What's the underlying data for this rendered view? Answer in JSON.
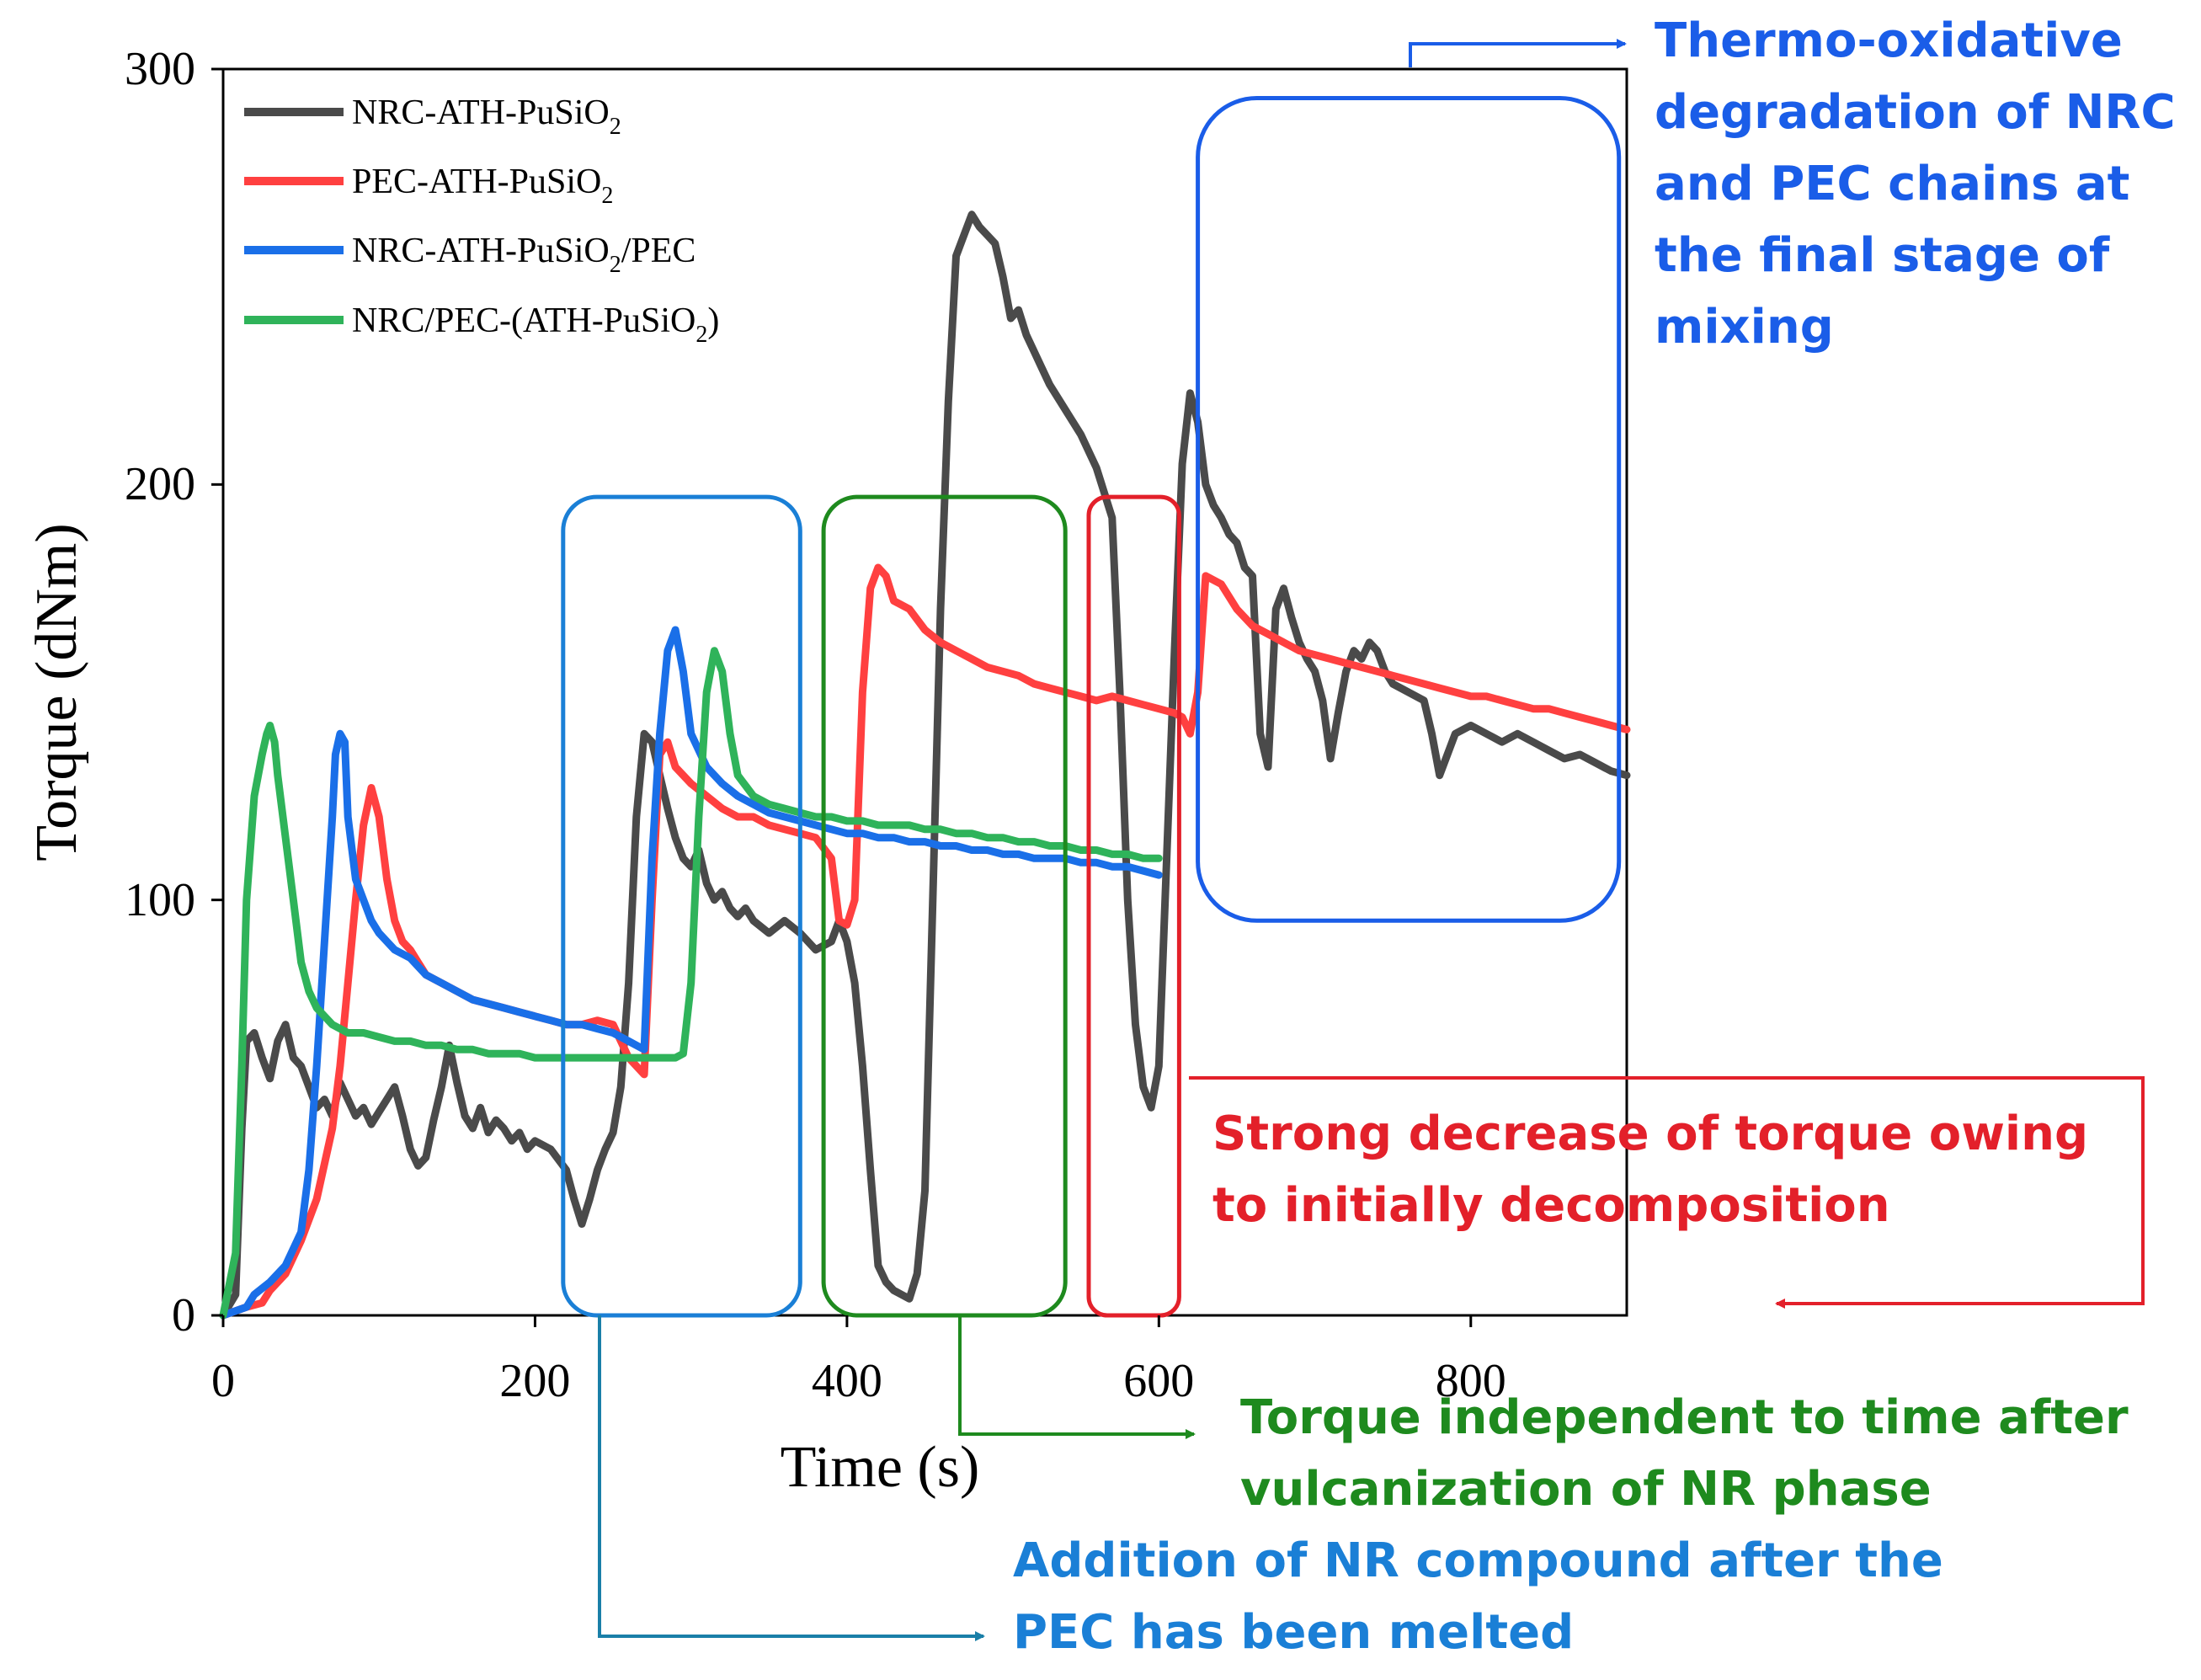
{
  "chart_data": {
    "type": "line",
    "xlabel": "Time (s)",
    "ylabel": "Torque (dNm)",
    "xlim": [
      0,
      900
    ],
    "ylim": [
      0,
      300
    ],
    "xticks": [
      "0",
      "200",
      "400",
      "600",
      "800"
    ],
    "yticks": [
      "0",
      "100",
      "200",
      "300"
    ],
    "grid": false,
    "legend_position": "top-left",
    "series": [
      {
        "name": "NRC-ATH-PuSiO2",
        "legend_main": "NRC-ATH-PuSiO",
        "legend_sub": "2",
        "legend_tail": "",
        "color": "#4a4a4a",
        "x": [
          0,
          8,
          12,
          15,
          20,
          25,
          30,
          35,
          40,
          45,
          50,
          55,
          60,
          65,
          70,
          75,
          80,
          85,
          90,
          95,
          100,
          105,
          110,
          115,
          120,
          125,
          130,
          135,
          140,
          145,
          150,
          155,
          160,
          165,
          170,
          175,
          180,
          185,
          190,
          195,
          200,
          210,
          220,
          225,
          230,
          235,
          240,
          245,
          250,
          255,
          260,
          265,
          270,
          275,
          280,
          285,
          290,
          295,
          300,
          305,
          310,
          315,
          320,
          325,
          330,
          335,
          340,
          350,
          360,
          370,
          380,
          390,
          395,
          400,
          405,
          410,
          415,
          420,
          425,
          430,
          435,
          440,
          445,
          450,
          455,
          460,
          465,
          470,
          475,
          480,
          485,
          490,
          495,
          500,
          505,
          510,
          515,
          520,
          525,
          530,
          540,
          550,
          560,
          565,
          570,
          575,
          580,
          585,
          590,
          595,
          600,
          605,
          610,
          615,
          620,
          625,
          630,
          635,
          640,
          645,
          650,
          655,
          660,
          665,
          670,
          675,
          680,
          685,
          690,
          695,
          700,
          705,
          710,
          715,
          720,
          725,
          730,
          735,
          740,
          745,
          750,
          760,
          770,
          775,
          780,
          785,
          790,
          800,
          810,
          820,
          830,
          840,
          850,
          860,
          870,
          880,
          890,
          900
        ],
        "y": [
          0,
          5,
          45,
          66,
          68,
          62,
          57,
          66,
          70,
          62,
          60,
          55,
          50,
          52,
          48,
          56,
          52,
          48,
          50,
          46,
          49,
          52,
          55,
          48,
          40,
          36,
          38,
          47,
          55,
          65,
          56,
          48,
          45,
          50,
          44,
          47,
          45,
          42,
          44,
          40,
          42,
          40,
          35,
          28,
          22,
          28,
          35,
          40,
          44,
          55,
          80,
          120,
          140,
          138,
          130,
          122,
          115,
          110,
          108,
          112,
          104,
          100,
          102,
          98,
          96,
          98,
          95,
          92,
          95,
          92,
          88,
          90,
          95,
          90,
          80,
          60,
          35,
          12,
          8,
          6,
          5,
          4,
          10,
          30,
          100,
          170,
          220,
          255,
          260,
          265,
          262,
          260,
          258,
          250,
          240,
          242,
          236,
          232,
          228,
          224,
          218,
          212,
          204,
          198,
          192,
          150,
          100,
          70,
          55,
          50,
          60,
          110,
          160,
          205,
          222,
          215,
          200,
          195,
          192,
          188,
          186,
          180,
          178,
          140,
          132,
          170,
          175,
          168,
          162,
          158,
          155,
          148,
          134,
          145,
          155,
          160,
          158,
          162,
          160,
          155,
          152,
          150,
          148,
          140,
          130,
          135,
          140,
          142,
          140,
          138,
          140,
          138,
          136,
          134,
          135,
          133,
          131,
          130
        ]
      },
      {
        "name": "PEC-ATH-PuSiO2",
        "legend_main": "PEC-ATH-PuSiO",
        "legend_sub": "2",
        "legend_tail": "",
        "color": "#ff4040",
        "x": [
          0,
          15,
          25,
          30,
          40,
          50,
          60,
          70,
          75,
          80,
          85,
          90,
          95,
          100,
          105,
          110,
          115,
          120,
          125,
          130,
          140,
          150,
          160,
          170,
          180,
          190,
          200,
          210,
          220,
          230,
          240,
          250,
          260,
          270,
          275,
          280,
          285,
          290,
          300,
          310,
          320,
          330,
          340,
          350,
          360,
          370,
          380,
          390,
          395,
          400,
          405,
          410,
          415,
          420,
          425,
          430,
          440,
          450,
          460,
          470,
          480,
          490,
          500,
          510,
          520,
          530,
          540,
          550,
          560,
          570,
          580,
          590,
          600,
          610,
          615,
          620,
          625,
          630,
          640,
          650,
          660,
          670,
          680,
          690,
          700,
          710,
          720,
          730,
          740,
          750,
          760,
          770,
          780,
          790,
          800,
          810,
          820,
          830,
          840,
          850,
          860,
          870,
          880,
          890,
          900
        ],
        "y": [
          0,
          2,
          3,
          6,
          10,
          18,
          28,
          45,
          60,
          80,
          100,
          118,
          127,
          120,
          105,
          95,
          90,
          88,
          85,
          82,
          80,
          78,
          76,
          75,
          74,
          73,
          72,
          71,
          70,
          70,
          71,
          70,
          62,
          58,
          100,
          135,
          138,
          132,
          128,
          125,
          122,
          120,
          120,
          118,
          117,
          116,
          115,
          110,
          95,
          94,
          100,
          150,
          175,
          180,
          178,
          172,
          170,
          165,
          162,
          160,
          158,
          156,
          155,
          154,
          152,
          151,
          150,
          149,
          148,
          149,
          148,
          147,
          146,
          145,
          144,
          140,
          150,
          178,
          176,
          170,
          166,
          164,
          162,
          160,
          159,
          158,
          157,
          156,
          155,
          154,
          153,
          152,
          151,
          150,
          149,
          149,
          148,
          147,
          146,
          146,
          145,
          144,
          143,
          142,
          141
        ]
      },
      {
        "name": "NRC-ATH-PuSiO2/PEC",
        "legend_main": "NRC-ATH-PuSiO",
        "legend_sub": "2",
        "legend_tail": "/PEC",
        "color": "#1a6fe8",
        "x": [
          0,
          15,
          20,
          30,
          40,
          50,
          55,
          60,
          65,
          70,
          72,
          75,
          78,
          80,
          85,
          90,
          95,
          100,
          110,
          120,
          130,
          140,
          150,
          160,
          170,
          180,
          190,
          200,
          210,
          220,
          230,
          240,
          250,
          260,
          270,
          275,
          280,
          285,
          290,
          295,
          300,
          310,
          320,
          330,
          340,
          350,
          360,
          370,
          380,
          390,
          400,
          410,
          420,
          430,
          440,
          450,
          460,
          470,
          480,
          490,
          500,
          510,
          520,
          530,
          540,
          550,
          560,
          570,
          580,
          590,
          600
        ],
        "y": [
          0,
          2,
          5,
          8,
          12,
          20,
          35,
          60,
          90,
          120,
          135,
          140,
          138,
          120,
          105,
          100,
          95,
          92,
          88,
          86,
          82,
          80,
          78,
          76,
          75,
          74,
          73,
          72,
          71,
          70,
          70,
          69,
          68,
          66,
          64,
          110,
          140,
          160,
          165,
          155,
          140,
          132,
          128,
          125,
          123,
          121,
          120,
          119,
          118,
          117,
          116,
          116,
          115,
          115,
          114,
          114,
          113,
          113,
          112,
          112,
          111,
          111,
          110,
          110,
          110,
          109,
          109,
          108,
          108,
          107,
          106
        ]
      },
      {
        "name": "NRC/PEC-(ATH-PuSiO2)",
        "legend_main": "NRC/PEC-(ATH-PuSiO",
        "legend_sub": "2",
        "legend_tail": ")",
        "color": "#2fb35a",
        "x": [
          0,
          8,
          12,
          15,
          20,
          25,
          28,
          30,
          33,
          35,
          40,
          45,
          50,
          55,
          60,
          70,
          80,
          90,
          100,
          110,
          120,
          130,
          140,
          150,
          160,
          170,
          180,
          190,
          200,
          210,
          220,
          230,
          240,
          250,
          260,
          270,
          280,
          290,
          295,
          300,
          305,
          310,
          315,
          320,
          325,
          330,
          340,
          350,
          360,
          370,
          380,
          390,
          400,
          410,
          420,
          430,
          440,
          450,
          460,
          470,
          480,
          490,
          500,
          510,
          520,
          530,
          540,
          550,
          560,
          570,
          580,
          590,
          600
        ],
        "y": [
          0,
          15,
          60,
          100,
          125,
          135,
          140,
          142,
          138,
          130,
          115,
          100,
          85,
          78,
          74,
          70,
          68,
          68,
          67,
          66,
          66,
          65,
          65,
          64,
          64,
          63,
          63,
          63,
          62,
          62,
          62,
          62,
          62,
          62,
          62,
          62,
          62,
          62,
          63,
          80,
          120,
          150,
          160,
          155,
          140,
          130,
          125,
          123,
          122,
          121,
          120,
          120,
          119,
          119,
          118,
          118,
          118,
          117,
          117,
          116,
          116,
          115,
          115,
          114,
          114,
          113,
          113,
          112,
          112,
          111,
          111,
          110,
          110
        ]
      }
    ],
    "annotations": [
      {
        "lines": [
          "Thermo-oxidative",
          "degradation of NRC",
          "and PEC chains at",
          "the final stage of",
          "mixing"
        ],
        "color": "#1a5de8",
        "box_x": [
          625,
          895
        ],
        "box_y": [
          95,
          293
        ]
      },
      {
        "lines": [
          "Strong decrease of torque owing",
          "to initially decomposition"
        ],
        "color": "#e3202a",
        "box_x": [
          555,
          613
        ],
        "box_y": [
          0,
          197
        ]
      },
      {
        "lines": [
          "Torque independent to time after",
          "vulcanization of NR phase"
        ],
        "color": "#1e8a1e",
        "box_x": [
          385,
          540
        ],
        "box_y": [
          0,
          197
        ]
      },
      {
        "lines": [
          "Addition of NR compound after the",
          "PEC has been melted"
        ],
        "color": "#1a7fd6",
        "box_x": [
          218,
          370
        ],
        "box_y": [
          0,
          197
        ]
      }
    ]
  }
}
